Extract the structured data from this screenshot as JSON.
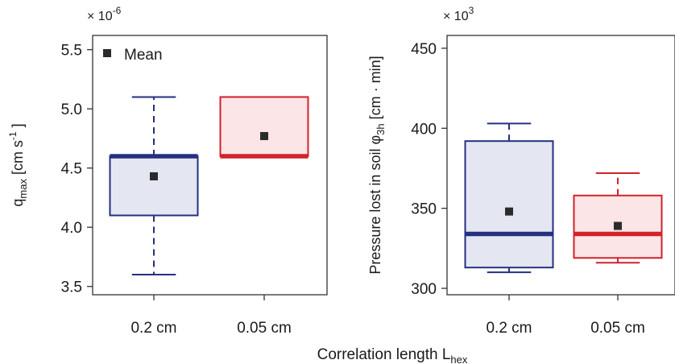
{
  "chart_data": [
    {
      "type": "box",
      "categories": [
        "0.2 cm",
        "0.05 cm"
      ],
      "ylabel": {
        "main": "q",
        "sub": "max",
        "unit": " [cm s",
        "unit_sup": "-1",
        "unit_end": " ]"
      },
      "exponent": {
        "prefix": "× 10",
        "power": "-6"
      },
      "ylim": [
        3.43,
        5.62
      ],
      "yticks": [
        3.5,
        4.0,
        4.5,
        5.0,
        5.5
      ],
      "ytick_labels": [
        "3.5",
        "4.0",
        "4.5",
        "5.0",
        "5.5"
      ],
      "legend": {
        "label": "Mean",
        "position": "top-left"
      },
      "boxes": [
        {
          "category": "0.2 cm",
          "whisker_low": 3.6,
          "q1": 4.1,
          "median": 4.6,
          "q3": 4.6,
          "whisker_high": 5.1,
          "mean": 4.43,
          "color": "#26307f",
          "fill": "#e4e6f1"
        },
        {
          "category": "0.05 cm",
          "whisker_low": null,
          "q1": 4.6,
          "median": 4.6,
          "q3": 5.1,
          "whisker_high": null,
          "mean": 4.77,
          "color": "#d1222b",
          "fill": "#fbe5e6"
        }
      ]
    },
    {
      "type": "box",
      "categories": [
        "0.2 cm",
        "0.05 cm"
      ],
      "ylabel": {
        "main": "Pressure lost in soil φ",
        "sub": "3h",
        "unit": " [cm · min]"
      },
      "exponent": {
        "prefix": "× 10",
        "power": "3"
      },
      "ylim": [
        296,
        458
      ],
      "yticks": [
        300,
        350,
        400,
        450
      ],
      "ytick_labels": [
        "300",
        "350",
        "400",
        "450"
      ],
      "boxes": [
        {
          "category": "0.2 cm",
          "whisker_low": 310,
          "q1": 313,
          "median": 334,
          "q3": 392,
          "whisker_high": 403,
          "mean": 348,
          "color": "#26307f",
          "fill": "#e4e6f1"
        },
        {
          "category": "0.05 cm",
          "whisker_low": 316,
          "q1": 319,
          "median": 334,
          "q3": 358,
          "whisker_high": 372,
          "mean": 339,
          "color": "#d1222b",
          "fill": "#fbe5e6"
        }
      ]
    }
  ],
  "xlabel": {
    "main": "Correlation length L",
    "sub": "hex"
  },
  "colors": {
    "mean_marker": "#2b2b2b",
    "axis": "#333333"
  }
}
